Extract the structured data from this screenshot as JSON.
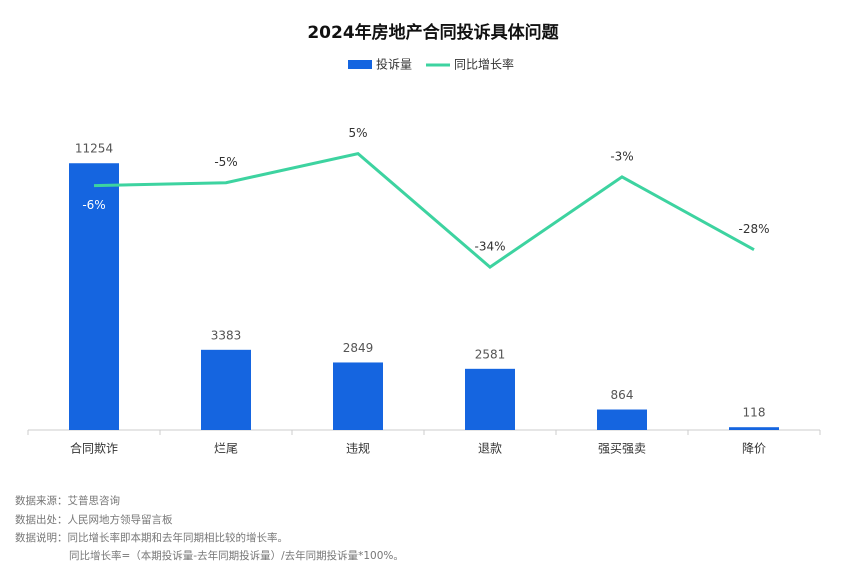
{
  "chart_data": {
    "type": "bar_line",
    "title": "2024年房地产合同投诉具体问题",
    "categories": [
      "合同欺诈",
      "烂尾",
      "违规",
      "退款",
      "强买强卖",
      "降价"
    ],
    "series": [
      {
        "name": "投诉量",
        "type": "bar",
        "color": "#1565e0",
        "values": [
          11254,
          3383,
          2849,
          2581,
          864,
          118
        ]
      },
      {
        "name": "同比增长率",
        "type": "line",
        "axis": "y2",
        "color": "#3dd3a0",
        "values": [
          -6,
          -5,
          5,
          -34,
          -3,
          -28
        ],
        "value_labels": [
          "-6%",
          "-5%",
          "5%",
          "-34%",
          "-3%",
          "-28%"
        ]
      }
    ],
    "ylim": [
      0,
      13500
    ],
    "y2lim": [
      -90,
      20
    ]
  },
  "notes": [
    "数据来源：艾普思咨询",
    "数据出处：人民网地方领导留言板",
    "数据说明：同比增长率即本期和去年同期相比较的增长率。",
    "同比增长率=（本期投诉量-去年同期投诉量）/去年同期投诉量*100%。"
  ]
}
